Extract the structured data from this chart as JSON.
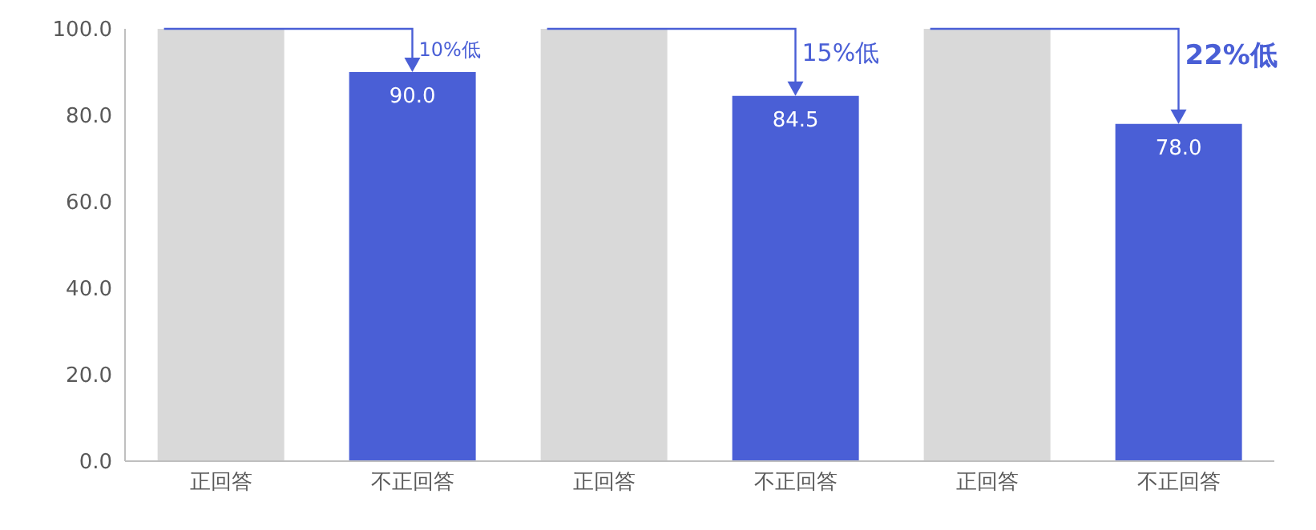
{
  "chart_data": {
    "type": "bar",
    "categories": [
      "正回答",
      "不正回答",
      "正回答",
      "不正回答",
      "正回答",
      "不正回答"
    ],
    "values": [
      100,
      90,
      100,
      84.5,
      100,
      78
    ],
    "colors": [
      "#d9d9d9",
      "#4a5fd6",
      "#d9d9d9",
      "#4a5fd6",
      "#d9d9d9",
      "#4a5fd6"
    ],
    "value_labels": [
      null,
      "90.0",
      null,
      "84.5",
      null,
      "78.0"
    ],
    "ylim": [
      0,
      100
    ],
    "yticks": [
      {
        "value": 0,
        "label": "0.0"
      },
      {
        "value": 20,
        "label": "20.0"
      },
      {
        "value": 40,
        "label": "40.0"
      },
      {
        "value": 60,
        "label": "60.0"
      },
      {
        "value": 80,
        "label": "80.0"
      },
      {
        "value": 100,
        "label": "100.0"
      }
    ],
    "annotations": [
      {
        "text": "10%低",
        "y": 90
      },
      {
        "text": "15%低",
        "y": 84.5
      },
      {
        "text": "22%低",
        "y": 78
      }
    ],
    "grid": false,
    "legend": false
  }
}
